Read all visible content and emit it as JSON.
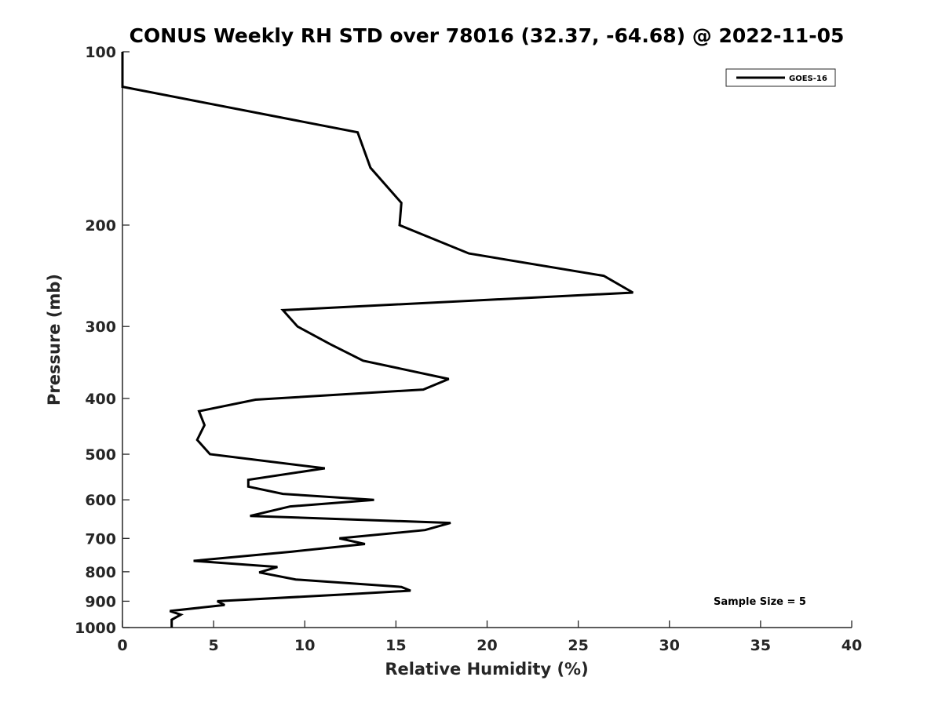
{
  "chart_data": {
    "type": "line",
    "title": "CONUS Weekly RH STD over 78016 (32.37, -64.68) @ 2022-11-05",
    "xlabel": "Relative Humidity (%)",
    "ylabel": "Pressure (mb)",
    "xlim": [
      0,
      40
    ],
    "ylim": [
      1000,
      100
    ],
    "y_scale": "log",
    "y_reversed": true,
    "grid": false,
    "legend_position": "top-right",
    "x_ticks": [
      "0",
      "5",
      "10",
      "15",
      "20",
      "25",
      "30",
      "35",
      "40"
    ],
    "y_ticks": [
      "100",
      "200",
      "300",
      "400",
      "500",
      "600",
      "700",
      "800",
      "900",
      "1000"
    ],
    "annotation": "Sample Size = 5",
    "series": [
      {
        "name": "GOES-16",
        "color": "#000000",
        "points": [
          [
            0,
            100
          ],
          [
            0,
            115
          ],
          [
            12.9,
            138
          ],
          [
            13.6,
            159
          ],
          [
            15.3,
            183
          ],
          [
            15.2,
            200
          ],
          [
            19.0,
            224
          ],
          [
            26.4,
            245
          ],
          [
            28.0,
            262
          ],
          [
            8.8,
            281
          ],
          [
            9.6,
            300
          ],
          [
            11.4,
            322
          ],
          [
            13.2,
            344
          ],
          [
            17.9,
            370
          ],
          [
            16.5,
            386
          ],
          [
            7.3,
            402
          ],
          [
            4.2,
            421
          ],
          [
            4.5,
            445
          ],
          [
            4.1,
            472
          ],
          [
            4.8,
            500
          ],
          [
            11.1,
            529
          ],
          [
            6.9,
            554
          ],
          [
            6.9,
            569
          ],
          [
            8.8,
            586
          ],
          [
            13.8,
            600
          ],
          [
            9.2,
            616
          ],
          [
            7.0,
            640
          ],
          [
            18.0,
            658
          ],
          [
            16.6,
            677
          ],
          [
            11.9,
            700
          ],
          [
            13.3,
            716
          ],
          [
            9.3,
            738
          ],
          [
            3.9,
            766
          ],
          [
            8.5,
            785
          ],
          [
            7.5,
            802
          ],
          [
            9.5,
            825
          ],
          [
            15.3,
            850
          ],
          [
            15.8,
            863
          ],
          [
            12.5,
            875
          ],
          [
            5.2,
            900
          ],
          [
            5.6,
            914
          ],
          [
            2.6,
            936
          ],
          [
            3.2,
            950
          ],
          [
            2.7,
            969
          ],
          [
            2.7,
            1000
          ]
        ]
      }
    ]
  }
}
